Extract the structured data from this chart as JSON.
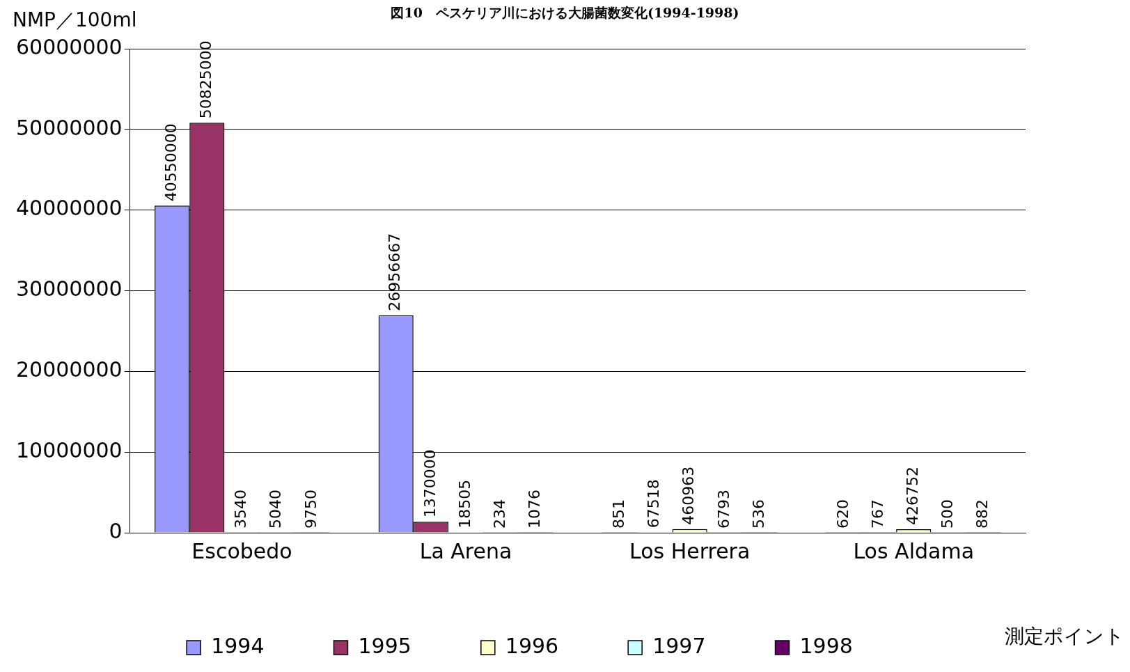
{
  "chart_data": {
    "type": "bar",
    "title": "図10　ペスケリア川における大腸菌数変化(1994-1998)",
    "ylabel": "NMP／100ml",
    "xlabel": "測定ポイント",
    "categories": [
      "Escobedo",
      "La Arena",
      "Los Herrera",
      "Los Aldama"
    ],
    "series": [
      {
        "name": "1994",
        "color": "#9999ff",
        "values": [
          40550000,
          26956667,
          851,
          620
        ]
      },
      {
        "name": "1995",
        "color": "#993366",
        "values": [
          50825000,
          1370000,
          67518,
          767
        ]
      },
      {
        "name": "1996",
        "color": "#ffffcc",
        "values": [
          3540,
          18505,
          460963,
          426752
        ]
      },
      {
        "name": "1997",
        "color": "#ccffff",
        "values": [
          5040,
          234,
          6793,
          500
        ]
      },
      {
        "name": "1998",
        "color": "#660066",
        "values": [
          9750,
          1076,
          536,
          882
        ]
      }
    ],
    "ylim": [
      0,
      60000000
    ],
    "yticks": [
      0,
      10000000,
      20000000,
      30000000,
      40000000,
      50000000,
      60000000
    ],
    "grid": "y",
    "legend": "bottom",
    "data_labels": true
  }
}
